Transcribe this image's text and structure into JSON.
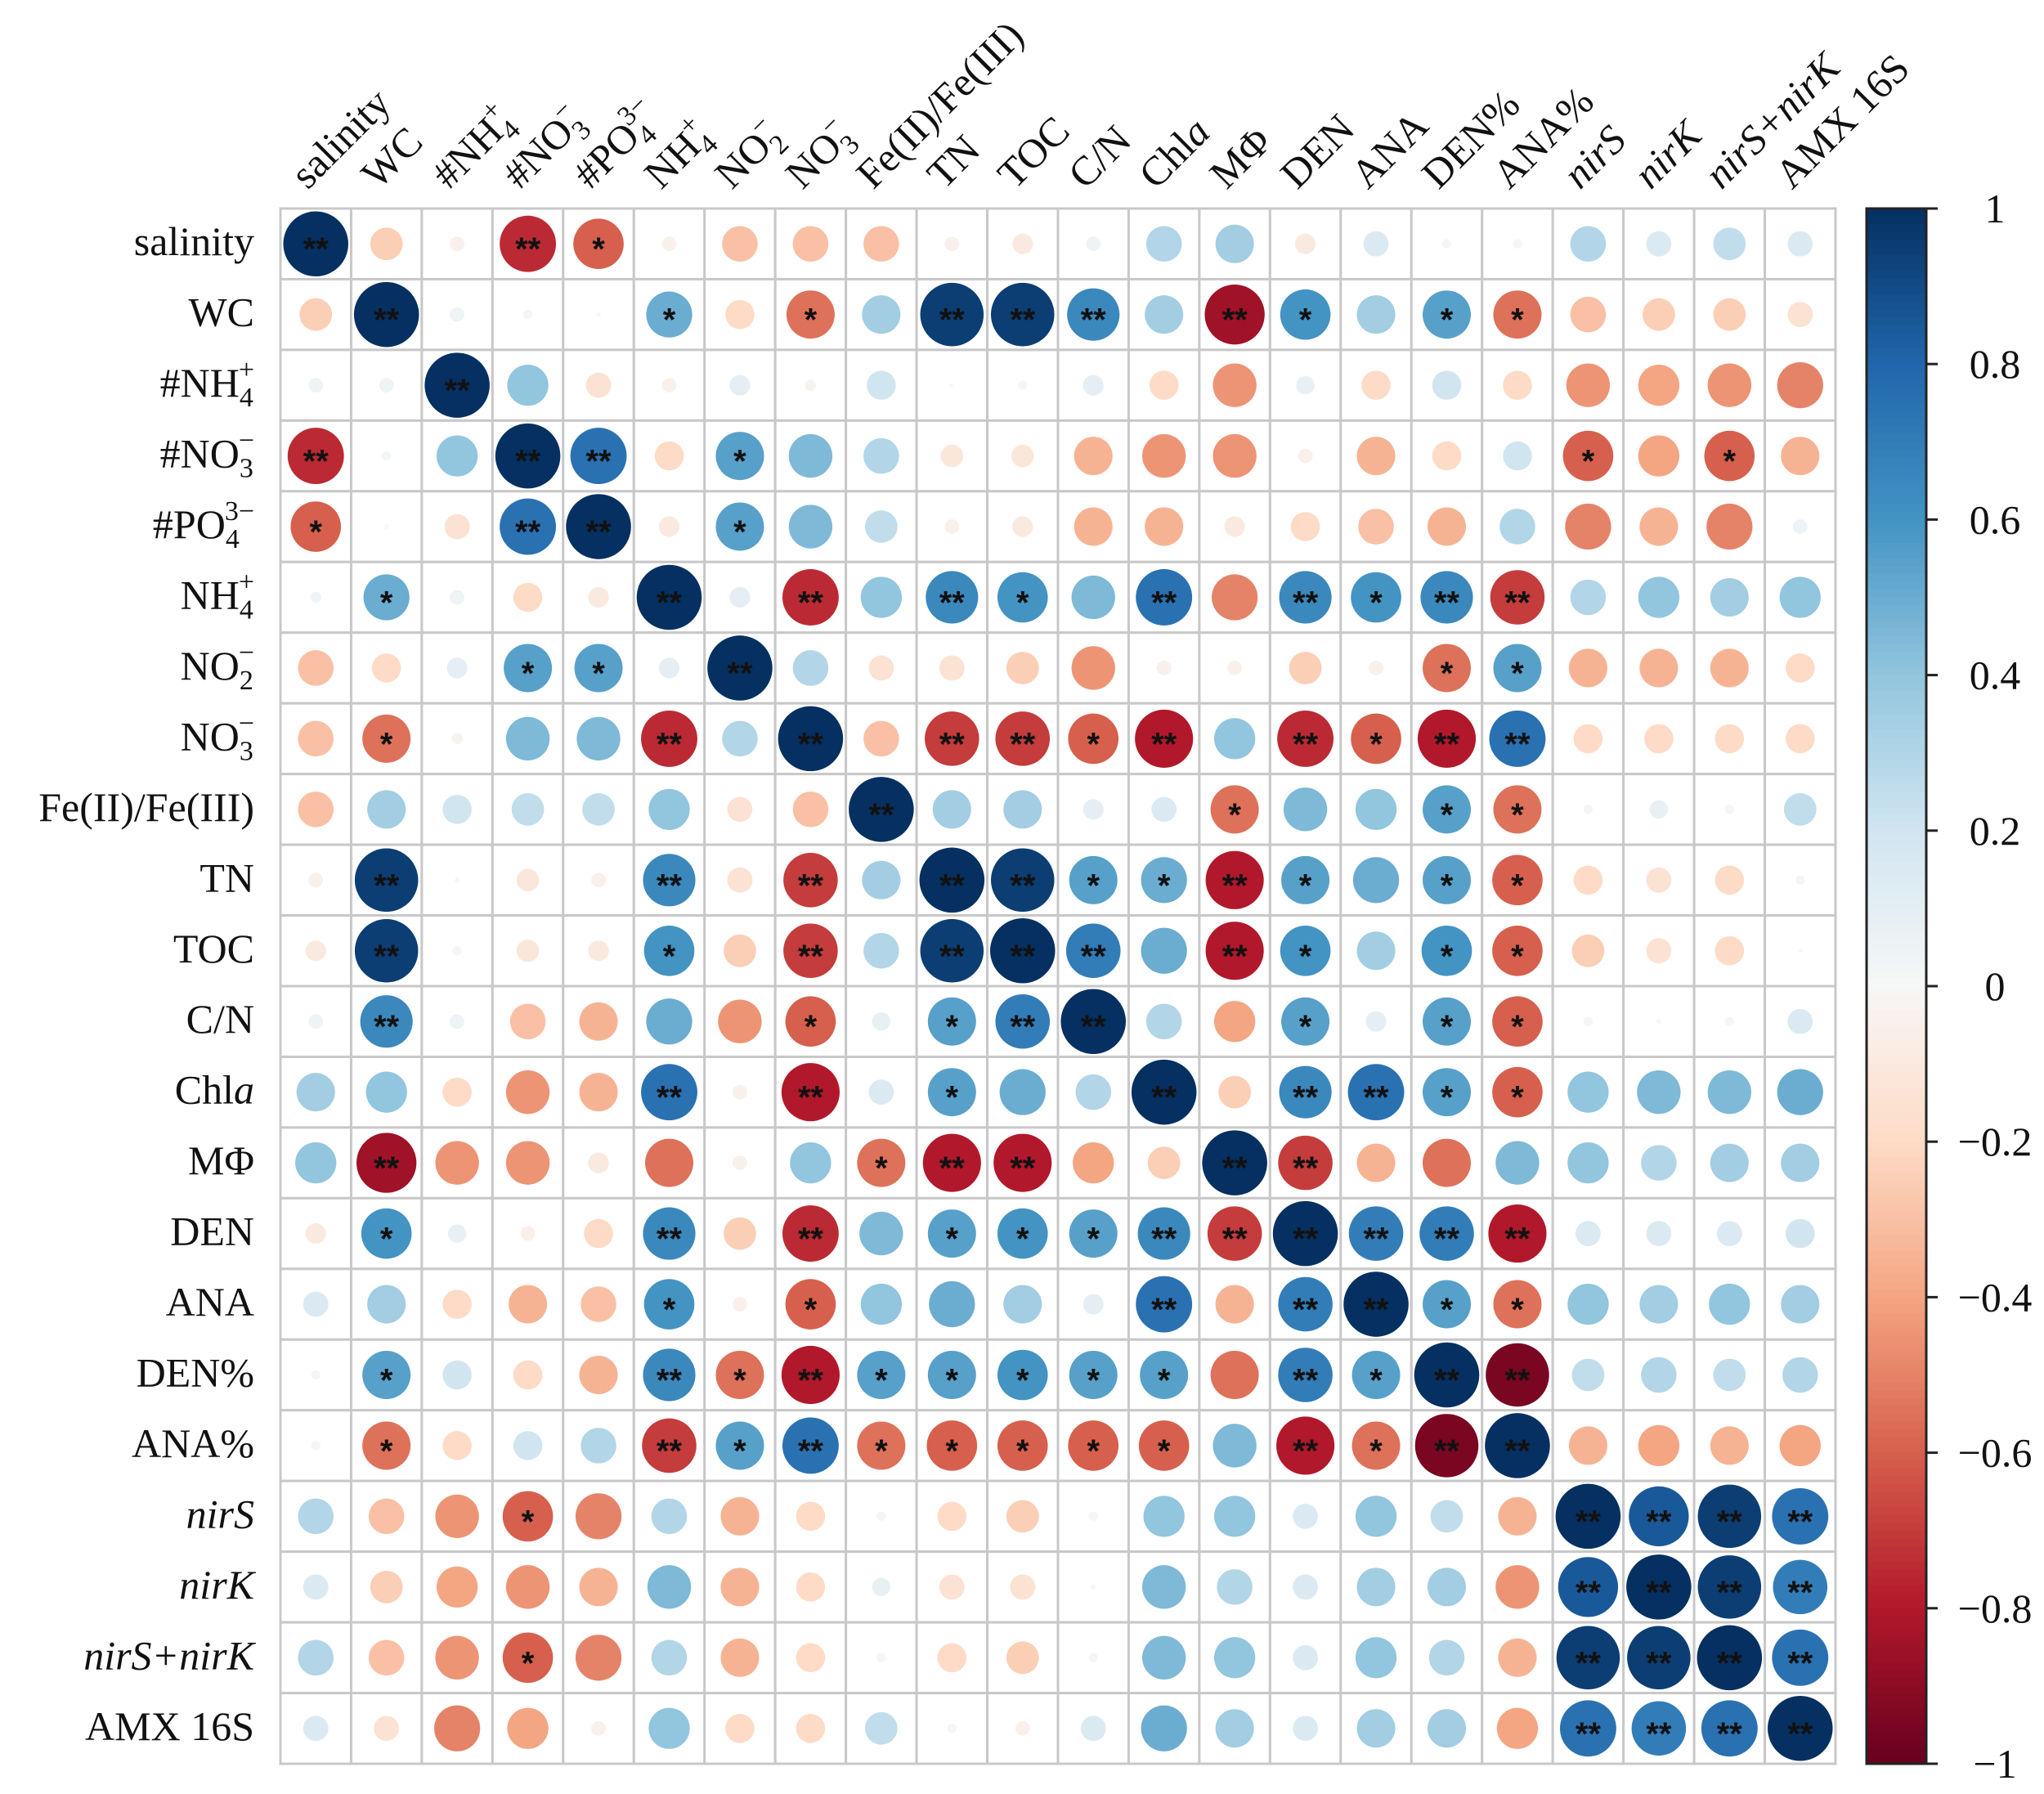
{
  "chart_data": {
    "type": "heatmap",
    "title": "",
    "labels": [
      {
        "main": "salinity"
      },
      {
        "main": "WC"
      },
      {
        "main": "#NH",
        "sub": "4",
        "sup": "+"
      },
      {
        "main": "#NO",
        "sub": "3",
        "sup": "−"
      },
      {
        "main": "#PO",
        "sub": "4",
        "sup": "3−"
      },
      {
        "main": "NH",
        "sub": "4",
        "sup": "+"
      },
      {
        "main": "NO",
        "sub": "2",
        "sup": "−"
      },
      {
        "main": "NO",
        "sub": "3",
        "sup": "−"
      },
      {
        "main": "Fe(II)/Fe(III)"
      },
      {
        "main": "TN"
      },
      {
        "main": "TOC"
      },
      {
        "main": "C/N"
      },
      {
        "main": "Chl",
        "ital": "a"
      },
      {
        "main": "MΦ"
      },
      {
        "main": "DEN"
      },
      {
        "main": "ANA"
      },
      {
        "main": "DEN%"
      },
      {
        "main": "ANA%"
      },
      {
        "main": "nirS",
        "italic": true
      },
      {
        "main": "nirK",
        "italic": true
      },
      {
        "main": "nirS+nirK",
        "italic": true
      },
      {
        "main": "AMX 16S"
      }
    ],
    "values": [
      [
        1,
        -0.25,
        -0.05,
        -0.75,
        -0.6,
        -0.05,
        -0.3,
        -0.3,
        -0.3,
        -0.05,
        -0.1,
        0.05,
        0.3,
        0.35,
        -0.1,
        0.15,
        0.02,
        0.02,
        0.3,
        0.15,
        0.25,
        0.15
      ],
      [
        -0.25,
        1,
        0.05,
        0.02,
        0,
        0.5,
        -0.2,
        -0.55,
        0.35,
        0.95,
        0.95,
        0.65,
        0.35,
        -0.85,
        0.6,
        0.35,
        0.55,
        -0.55,
        -0.3,
        -0.25,
        -0.25,
        -0.15
      ],
      [
        0.05,
        0.05,
        1,
        0.4,
        -0.15,
        -0.05,
        0.1,
        -0.03,
        0.2,
        0,
        0.02,
        0.1,
        -0.2,
        -0.45,
        0.08,
        -0.2,
        0.2,
        -0.2,
        -0.45,
        -0.4,
        -0.45,
        -0.5
      ],
      [
        -0.75,
        0.02,
        0.4,
        1,
        0.75,
        -0.2,
        0.55,
        0.45,
        0.3,
        -0.12,
        -0.12,
        -0.35,
        -0.45,
        -0.45,
        -0.05,
        -0.35,
        -0.2,
        0.2,
        -0.6,
        -0.4,
        -0.6,
        -0.35
      ],
      [
        -0.6,
        0,
        -0.15,
        0.75,
        1,
        -0.1,
        0.55,
        0.45,
        0.25,
        -0.05,
        -0.1,
        -0.35,
        -0.35,
        -0.1,
        -0.2,
        -0.3,
        -0.35,
        0.3,
        -0.5,
        -0.35,
        -0.5,
        0.05
      ],
      [
        0.03,
        0.5,
        0.05,
        -0.2,
        -0.1,
        1,
        0.1,
        -0.75,
        0.4,
        0.65,
        0.6,
        0.45,
        0.75,
        -0.5,
        0.65,
        0.6,
        0.65,
        -0.7,
        0.3,
        0.4,
        0.35,
        0.4
      ],
      [
        -0.3,
        -0.2,
        0.1,
        0.55,
        0.55,
        0.1,
        1,
        0.3,
        -0.15,
        -0.15,
        -0.25,
        -0.45,
        -0.05,
        -0.05,
        -0.25,
        -0.05,
        -0.55,
        0.55,
        -0.35,
        -0.35,
        -0.35,
        -0.2
      ],
      [
        -0.3,
        -0.55,
        -0.03,
        0.45,
        0.45,
        -0.75,
        0.3,
        1,
        -0.3,
        -0.7,
        -0.7,
        -0.6,
        -0.8,
        0.4,
        -0.75,
        -0.6,
        -0.8,
        0.75,
        -0.2,
        -0.2,
        -0.2,
        -0.2
      ],
      [
        -0.3,
        0.35,
        0.2,
        0.25,
        0.25,
        0.4,
        -0.15,
        -0.3,
        1,
        0.35,
        0.35,
        0.1,
        0.15,
        -0.55,
        0.45,
        0.4,
        0.55,
        -0.55,
        0.02,
        0.08,
        0.02,
        0.25
      ],
      [
        -0.05,
        0.95,
        0,
        -0.12,
        -0.05,
        0.65,
        -0.15,
        -0.7,
        0.35,
        1,
        0.95,
        0.55,
        0.5,
        -0.8,
        0.55,
        0.5,
        0.55,
        -0.6,
        -0.2,
        -0.15,
        -0.2,
        0.02
      ],
      [
        -0.1,
        0.95,
        0.02,
        -0.12,
        -0.1,
        0.6,
        -0.25,
        -0.7,
        0.3,
        0.95,
        1,
        0.7,
        0.5,
        -0.8,
        0.6,
        0.35,
        0.6,
        -0.6,
        -0.25,
        -0.15,
        -0.2,
        0
      ],
      [
        0.05,
        0.65,
        0.05,
        -0.3,
        -0.35,
        0.5,
        -0.45,
        -0.6,
        0.08,
        0.55,
        0.7,
        1,
        0.3,
        -0.4,
        0.55,
        0.1,
        0.55,
        -0.6,
        0.02,
        0,
        0.02,
        0.15
      ],
      [
        0.35,
        0.4,
        -0.2,
        -0.45,
        -0.35,
        0.75,
        -0.05,
        -0.8,
        0.15,
        0.55,
        0.5,
        0.3,
        1,
        -0.25,
        0.65,
        0.75,
        0.55,
        -0.6,
        0.4,
        0.45,
        0.45,
        0.5
      ],
      [
        0.4,
        -0.85,
        -0.45,
        -0.45,
        -0.1,
        -0.55,
        -0.05,
        0.4,
        -0.55,
        -0.8,
        -0.8,
        -0.4,
        -0.25,
        1,
        -0.7,
        -0.35,
        -0.55,
        0.45,
        0.4,
        0.3,
        0.35,
        0.35
      ],
      [
        -0.1,
        0.6,
        0.08,
        -0.05,
        -0.2,
        0.65,
        -0.25,
        -0.75,
        0.45,
        0.55,
        0.6,
        0.55,
        0.65,
        -0.7,
        1,
        0.7,
        0.7,
        -0.8,
        0.15,
        0.15,
        0.15,
        0.2
      ],
      [
        0.15,
        0.35,
        -0.2,
        -0.35,
        -0.3,
        0.6,
        -0.05,
        -0.6,
        0.4,
        0.5,
        0.35,
        0.1,
        0.75,
        -0.35,
        0.7,
        1,
        0.55,
        -0.55,
        0.4,
        0.35,
        0.4,
        0.35
      ],
      [
        0.02,
        0.55,
        0.2,
        -0.2,
        -0.35,
        0.65,
        -0.55,
        -0.8,
        0.55,
        0.55,
        0.6,
        0.55,
        0.55,
        -0.55,
        0.7,
        0.55,
        1,
        -0.95,
        0.25,
        0.3,
        0.25,
        0.3
      ],
      [
        0.02,
        -0.55,
        -0.2,
        0.2,
        0.3,
        -0.7,
        0.55,
        0.75,
        -0.55,
        -0.6,
        -0.6,
        -0.6,
        -0.6,
        0.45,
        -0.8,
        -0.55,
        -0.95,
        1,
        -0.35,
        -0.4,
        -0.35,
        -0.4
      ],
      [
        0.3,
        -0.3,
        -0.45,
        -0.6,
        -0.5,
        0.3,
        -0.35,
        -0.2,
        0.02,
        -0.2,
        -0.25,
        0.02,
        0.4,
        0.4,
        0.15,
        0.4,
        0.25,
        -0.35,
        1,
        0.85,
        0.95,
        0.75
      ],
      [
        0.15,
        -0.25,
        -0.4,
        -0.45,
        -0.35,
        0.45,
        -0.35,
        -0.2,
        0.08,
        -0.15,
        -0.15,
        0,
        0.45,
        0.3,
        0.15,
        0.35,
        0.35,
        -0.45,
        0.85,
        1,
        0.95,
        0.7
      ],
      [
        0.3,
        -0.3,
        -0.45,
        -0.6,
        -0.5,
        0.3,
        -0.35,
        -0.2,
        0.02,
        -0.2,
        -0.25,
        0.02,
        0.45,
        0.4,
        0.15,
        0.4,
        0.3,
        -0.35,
        0.95,
        0.95,
        1,
        0.75
      ],
      [
        0.15,
        -0.15,
        -0.5,
        -0.4,
        -0.05,
        0.4,
        -0.2,
        -0.2,
        0.25,
        0.02,
        -0.05,
        0.15,
        0.5,
        0.35,
        0.15,
        0.35,
        0.35,
        -0.4,
        0.75,
        0.7,
        0.75,
        1
      ]
    ],
    "significance": [
      [
        "**",
        "",
        "",
        "**",
        "*",
        "",
        "",
        "",
        "",
        "",
        "",
        "",
        "",
        "",
        "",
        "",
        "",
        "",
        "",
        "",
        "",
        ""
      ],
      [
        "",
        "**",
        "",
        "",
        "",
        "*",
        "",
        "*",
        "",
        "**",
        "**",
        "**",
        "",
        "**",
        "*",
        "",
        "*",
        "*",
        "",
        "",
        "",
        ""
      ],
      [
        "",
        "",
        "**",
        "",
        "",
        "",
        "",
        "",
        "",
        "",
        "",
        "",
        "",
        "",
        "",
        "",
        "",
        "",
        "",
        "",
        "",
        ""
      ],
      [
        "**",
        "",
        "",
        "**",
        "**",
        "",
        "*",
        "",
        "",
        "",
        "",
        "",
        "",
        "",
        "",
        "",
        "",
        "",
        "*",
        "",
        "*",
        ""
      ],
      [
        "*",
        "",
        "",
        "**",
        "**",
        "",
        "*",
        "",
        "",
        "",
        "",
        "",
        "",
        "",
        "",
        "",
        "",
        "",
        "",
        "",
        "",
        ""
      ],
      [
        "",
        "*",
        "",
        "",
        "",
        "**",
        "",
        "**",
        "",
        "**",
        "*",
        "",
        "**",
        "",
        "**",
        "*",
        "**",
        "**",
        "",
        "",
        "",
        ""
      ],
      [
        "",
        "",
        "",
        "*",
        "*",
        "",
        "**",
        "",
        "",
        "",
        "",
        "",
        "",
        "",
        "",
        "",
        "*",
        "*",
        "",
        "",
        "",
        ""
      ],
      [
        "",
        "*",
        "",
        "",
        "",
        "**",
        "",
        "**",
        "",
        "**",
        "**",
        "*",
        "**",
        "",
        "**",
        "*",
        "**",
        "**",
        "",
        "",
        "",
        ""
      ],
      [
        "",
        "",
        "",
        "",
        "",
        "",
        "",
        "",
        "**",
        "",
        "",
        "",
        "",
        "*",
        "",
        "",
        "*",
        "*",
        "",
        "",
        "",
        ""
      ],
      [
        "",
        "**",
        "",
        "",
        "",
        "**",
        "",
        "**",
        "",
        "**",
        "**",
        "*",
        "*",
        "**",
        "*",
        "",
        "*",
        "*",
        "",
        "",
        "",
        ""
      ],
      [
        "",
        "**",
        "",
        "",
        "",
        "*",
        "",
        "**",
        "",
        "**",
        "**",
        "**",
        "",
        "**",
        "*",
        "",
        "*",
        "*",
        "",
        "",
        "",
        ""
      ],
      [
        "",
        "**",
        "",
        "",
        "",
        "",
        "",
        "*",
        "",
        "*",
        "**",
        "**",
        "",
        "",
        "*",
        "",
        "*",
        "*",
        "",
        "",
        "",
        ""
      ],
      [
        "",
        "",
        "",
        "",
        "",
        "**",
        "",
        "**",
        "",
        "*",
        "",
        "",
        "**",
        "",
        "**",
        "**",
        "*",
        "*",
        "",
        "",
        "",
        ""
      ],
      [
        "",
        "**",
        "",
        "",
        "",
        "",
        "",
        "",
        "*",
        "**",
        "**",
        "",
        "",
        "**",
        "**",
        "",
        "",
        "",
        "",
        "",
        "",
        ""
      ],
      [
        "",
        "*",
        "",
        "",
        "",
        "**",
        "",
        "**",
        "",
        "*",
        "*",
        "*",
        "**",
        "**",
        "**",
        "**",
        "**",
        "**",
        "",
        "",
        "",
        ""
      ],
      [
        "",
        "",
        "",
        "",
        "",
        "*",
        "",
        "*",
        "",
        "",
        "",
        "",
        "**",
        "",
        "**",
        "**",
        "*",
        "*",
        "",
        "",
        "",
        ""
      ],
      [
        "",
        "*",
        "",
        "",
        "",
        "**",
        "*",
        "**",
        "*",
        "*",
        "*",
        "*",
        "*",
        "",
        "**",
        "*",
        "**",
        "**",
        "",
        "",
        "",
        ""
      ],
      [
        "",
        "*",
        "",
        "",
        "",
        "**",
        "*",
        "**",
        "*",
        "*",
        "*",
        "*",
        "*",
        "",
        "**",
        "*",
        "**",
        "**",
        "",
        "",
        "",
        ""
      ],
      [
        "",
        "",
        "",
        "*",
        "",
        "",
        "",
        "",
        "",
        "",
        "",
        "",
        "",
        "",
        "",
        "",
        "",
        "",
        "**",
        "**",
        "**",
        "**"
      ],
      [
        "",
        "",
        "",
        "",
        "",
        "",
        "",
        "",
        "",
        "",
        "",
        "",
        "",
        "",
        "",
        "",
        "",
        "",
        "**",
        "**",
        "**",
        "**"
      ],
      [
        "",
        "",
        "",
        "*",
        "",
        "",
        "",
        "",
        "",
        "",
        "",
        "",
        "",
        "",
        "",
        "",
        "",
        "",
        "**",
        "**",
        "**",
        "**"
      ],
      [
        "",
        "",
        "",
        "",
        "",
        "",
        "",
        "",
        "",
        "",
        "",
        "",
        "",
        "",
        "",
        "",
        "",
        "",
        "**",
        "**",
        "**",
        "**"
      ]
    ],
    "colorbar": {
      "range": [
        -1,
        1
      ],
      "ticks": [
        "1",
        "0.8",
        "0.6",
        "0.4",
        "0.2",
        "0",
        "−0.2",
        "−0.4",
        "−0.6",
        "−0.8",
        "−1"
      ],
      "tick_values": [
        1,
        0.8,
        0.6,
        0.4,
        0.2,
        0,
        -0.2,
        -0.4,
        -0.6,
        -0.8,
        -1
      ],
      "colors": [
        "#67001f",
        "#b2182b",
        "#d6604d",
        "#f4a582",
        "#fddbc7",
        "#f7f7f7",
        "#d1e5f0",
        "#92c5de",
        "#4393c3",
        "#2166ac",
        "#053061"
      ]
    }
  }
}
